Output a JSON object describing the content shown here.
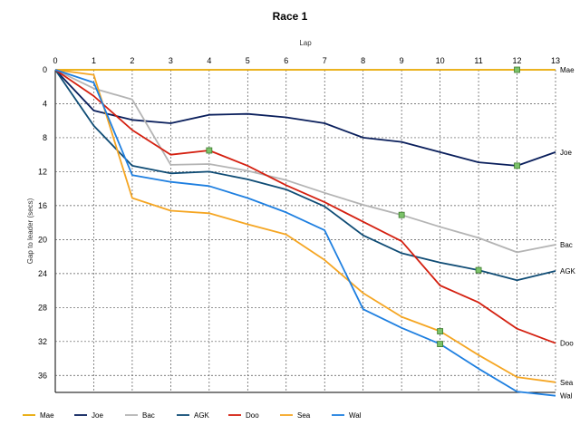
{
  "chart_data": {
    "type": "line",
    "title": "Race 1",
    "xlabel": "Lap",
    "ylabel": "Gap to leader (secs)",
    "x": [
      0,
      1,
      2,
      3,
      4,
      5,
      6,
      7,
      8,
      9,
      10,
      11,
      12,
      13
    ],
    "xlim": [
      0,
      13
    ],
    "ylim": [
      0,
      38
    ],
    "y_inverted": true,
    "x_axis_position": "top",
    "yticks": [
      0,
      4,
      8,
      12,
      16,
      20,
      24,
      28,
      32,
      36
    ],
    "xticks": [
      0,
      1,
      2,
      3,
      4,
      5,
      6,
      7,
      8,
      9,
      10,
      11,
      12,
      13
    ],
    "grid": true,
    "legend_position": "bottom",
    "series": [
      {
        "name": "Mae",
        "color": "#e8a800",
        "values": [
          0,
          0,
          0,
          0,
          0,
          0,
          0,
          0,
          0,
          0,
          0,
          0,
          0,
          0
        ],
        "end_label": "Mae",
        "markers": [
          12
        ]
      },
      {
        "name": "Joe",
        "color": "#0a1f5c",
        "values": [
          0,
          4.8,
          5.9,
          6.3,
          5.3,
          5.2,
          5.6,
          6.3,
          8.0,
          8.5,
          9.7,
          10.9,
          11.3,
          9.7
        ],
        "end_label": "Joe",
        "markers": [
          12
        ]
      },
      {
        "name": "Bac",
        "color": "#b4b4b4",
        "values": [
          0,
          2.2,
          3.5,
          11.2,
          11.1,
          11.9,
          13.0,
          14.5,
          15.9,
          17.1,
          18.5,
          19.8,
          21.5,
          20.6
        ],
        "end_label": "Bac",
        "markers": [
          9
        ]
      },
      {
        "name": "AGK",
        "color": "#0f4c75",
        "values": [
          0,
          6.6,
          11.3,
          12.2,
          12.0,
          12.9,
          14.1,
          16.1,
          19.5,
          21.6,
          22.7,
          23.6,
          24.8,
          23.7
        ],
        "end_label": "AGK",
        "markers": [
          11
        ]
      },
      {
        "name": "Doo",
        "color": "#d42010",
        "values": [
          0,
          3.1,
          7.1,
          10.0,
          9.5,
          11.3,
          13.6,
          15.6,
          17.9,
          20.2,
          25.4,
          27.4,
          30.5,
          32.2
        ],
        "end_label": "Doo",
        "markers": [
          4
        ]
      },
      {
        "name": "Sea",
        "color": "#f5a623",
        "values": [
          0,
          0.6,
          15.1,
          16.6,
          16.9,
          18.2,
          19.4,
          22.4,
          26.3,
          29.1,
          30.8,
          33.6,
          36.2,
          36.8
        ],
        "end_label": "Sea",
        "markers": [
          10
        ]
      },
      {
        "name": "Wal",
        "color": "#1e7fe0",
        "values": [
          0,
          1.5,
          12.4,
          13.2,
          13.7,
          15.1,
          16.8,
          18.9,
          28.2,
          30.4,
          32.3,
          35.2,
          37.9,
          38.4
        ],
        "end_label": "Wal",
        "markers": [
          10
        ]
      }
    ],
    "marker_color": "#7cc36a"
  }
}
